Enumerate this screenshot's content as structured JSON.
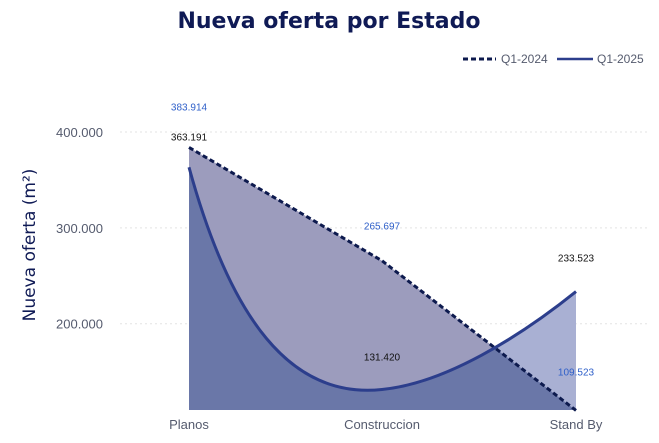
{
  "chart_data": {
    "type": "area",
    "title": "Nueva oferta por Estado",
    "xlabel": "",
    "ylabel": "Nueva oferta (m²)",
    "categories": [
      "Planos",
      "Construccion",
      "Stand By"
    ],
    "yticks": [
      "200.000",
      "300.000",
      "400.000"
    ],
    "ytick_values": [
      200000,
      300000,
      400000
    ],
    "ylim": [
      110000,
      400000
    ],
    "grid": true,
    "legend_position": "top-right",
    "series": [
      {
        "name": "Q1-2024",
        "values": [
          383914,
          265697,
          109523
        ],
        "labels": [
          "383.914",
          "265.697",
          "109.523"
        ],
        "line_style": "dotted",
        "line_color": "#0d1a4e",
        "fill_color": "#9c9cbd",
        "label_color": "#2e5fc9"
      },
      {
        "name": "Q1-2025",
        "values": [
          363191,
          131420,
          233523
        ],
        "labels": [
          "363.191",
          "131.420",
          "233.523"
        ],
        "line_style": "solid",
        "line_color": "#2c3e8c",
        "fill_color": "#6a77a8",
        "label_color": "#111111"
      }
    ]
  },
  "colors": {
    "title": "#0f1a55",
    "axis_text": "#555b6e",
    "grid": "#e3e3e3",
    "overlap_fill": "#a9b0d3"
  }
}
